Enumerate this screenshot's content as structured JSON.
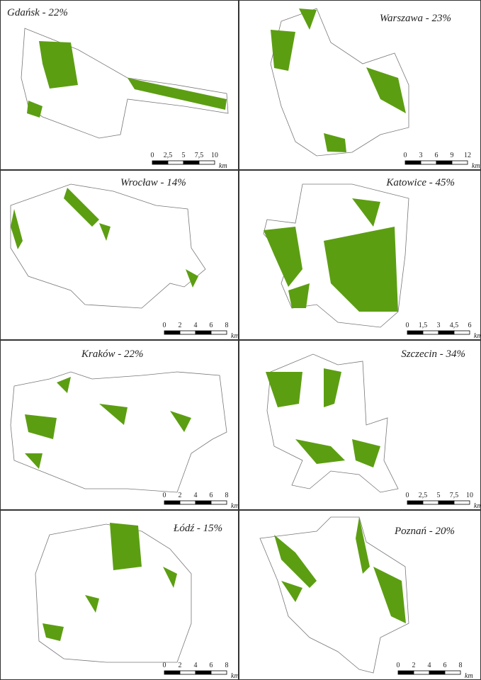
{
  "panels": [
    {
      "title": "Gdańsk - 22%",
      "scale": {
        "labels": [
          "0",
          "2,5",
          "5",
          "7,5",
          "10"
        ],
        "unit": "km"
      }
    },
    {
      "title": "Warszawa - 23%",
      "scale": {
        "labels": [
          "0",
          "3",
          "6",
          "9",
          "12"
        ],
        "unit": "km"
      }
    },
    {
      "title": "Wrocław - 14%",
      "scale": {
        "labels": [
          "0",
          "2",
          "4",
          "6",
          "8"
        ],
        "unit": "km"
      }
    },
    {
      "title": "Katowice - 45%",
      "scale": {
        "labels": [
          "0",
          "1,5",
          "3",
          "4,5",
          "6"
        ],
        "unit": "km"
      }
    },
    {
      "title": "Kraków - 22%",
      "scale": {
        "labels": [
          "0",
          "2",
          "4",
          "6",
          "8"
        ],
        "unit": "km"
      }
    },
    {
      "title": "Szczecin - 34%",
      "scale": {
        "labels": [
          "0",
          "2,5",
          "5",
          "7,5",
          "10"
        ],
        "unit": "km"
      }
    },
    {
      "title": "Łódź - 15%",
      "scale": {
        "labels": [
          "0",
          "2",
          "4",
          "6",
          "8"
        ],
        "unit": "km"
      }
    },
    {
      "title": "Poznań - 20%",
      "scale": {
        "labels": [
          "0",
          "2",
          "4",
          "6",
          "8"
        ],
        "unit": "km"
      }
    }
  ]
}
